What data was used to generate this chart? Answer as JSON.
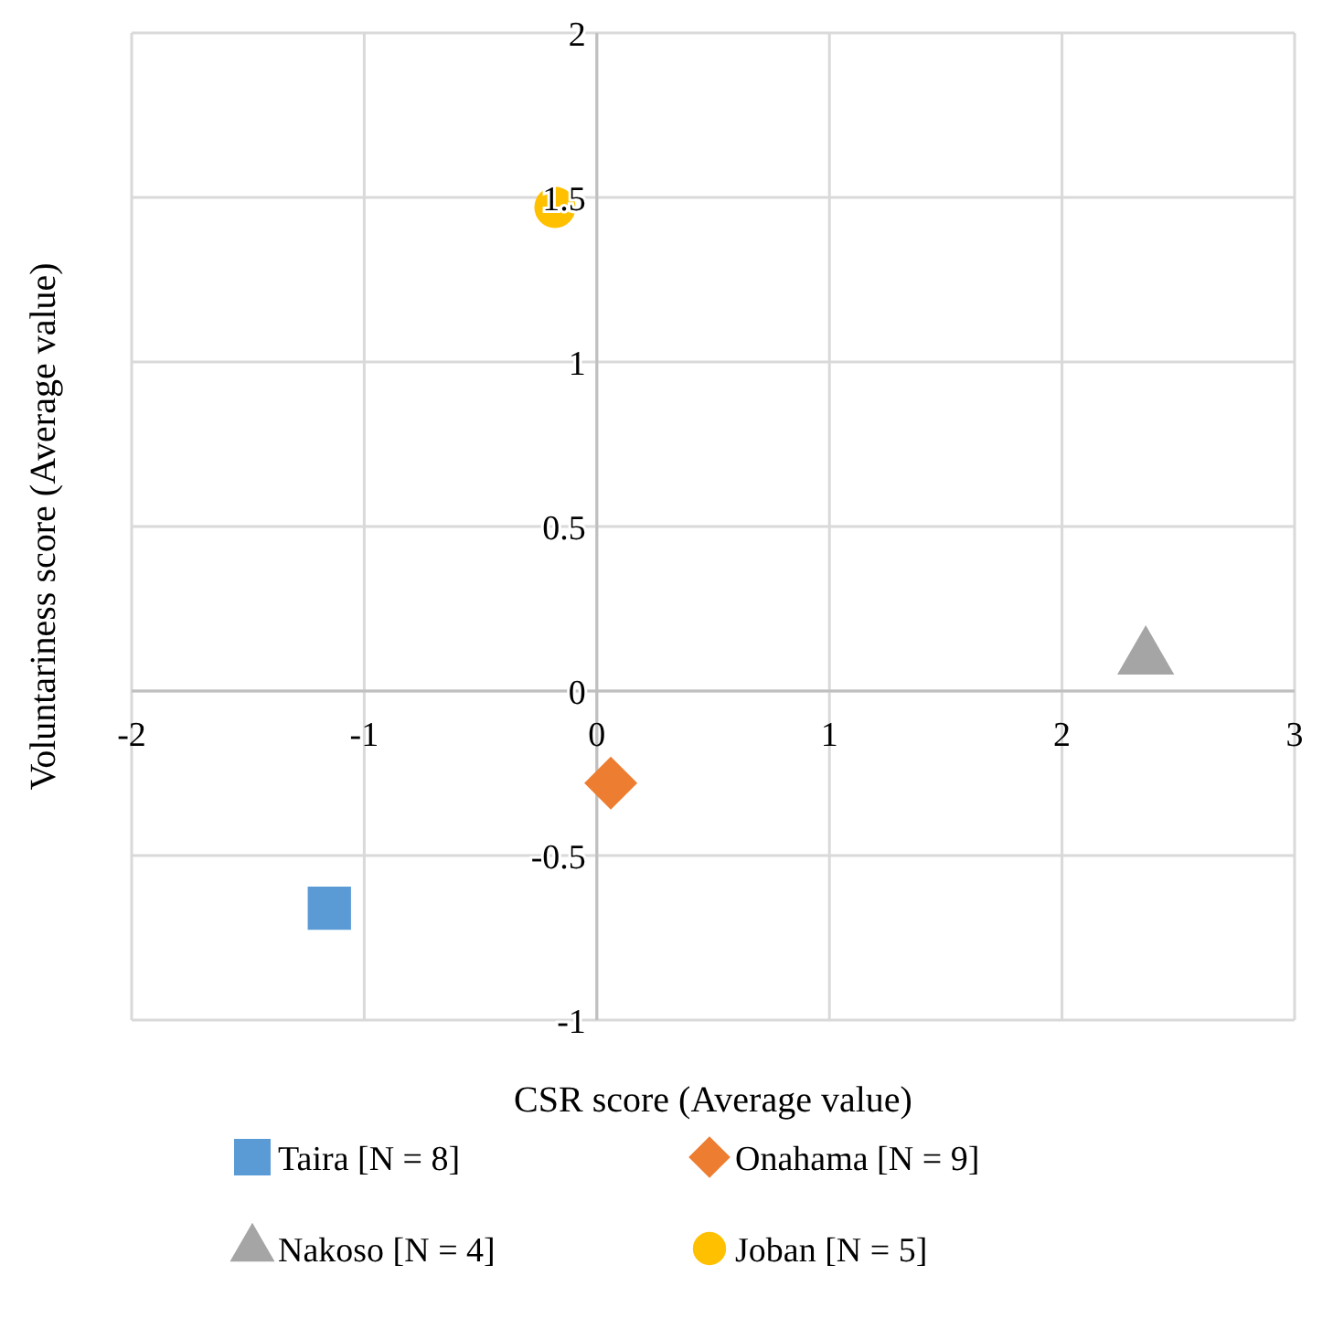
{
  "chart_data": {
    "type": "scatter",
    "xlabel": "CSR score (Average value)",
    "ylabel": "Voluntariness score (Average value)",
    "xlim": [
      -2,
      3
    ],
    "xticks": [
      -2,
      -1,
      0,
      1,
      2,
      3
    ],
    "ylim": [
      -1,
      2
    ],
    "yticks": [
      -1,
      -0.5,
      0,
      0.5,
      1,
      1.5,
      2
    ],
    "grid": true,
    "legend": "bottom",
    "series": [
      {
        "name": "Taira [N = 8]",
        "color": "#5b9bd5",
        "marker": "square",
        "x": [
          -1.15
        ],
        "values": [
          -0.66
        ]
      },
      {
        "name": "Onahama [N = 9]",
        "color": "#ed7d31",
        "marker": "diamond",
        "x": [
          0.06
        ],
        "values": [
          -0.28
        ]
      },
      {
        "name": "Nakoso [N = 4]",
        "color": "#a5a5a5",
        "marker": "triangle",
        "x": [
          2.36
        ],
        "values": [
          0.1
        ]
      },
      {
        "name": "Joban [N = 5]",
        "color": "#ffc000",
        "marker": "circle",
        "x": [
          -0.18
        ],
        "values": [
          1.47
        ]
      }
    ]
  }
}
